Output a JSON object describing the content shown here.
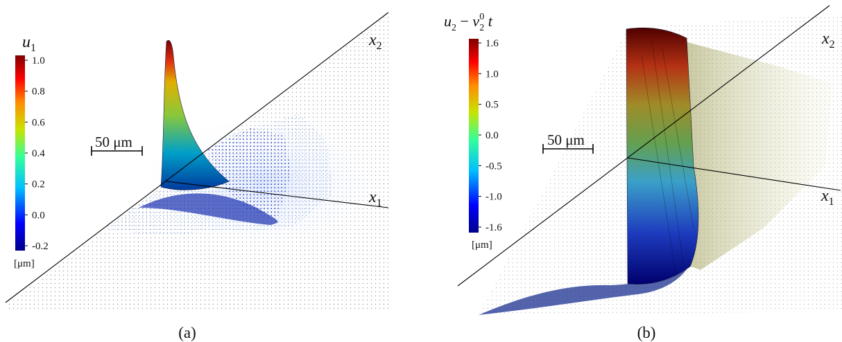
{
  "panels": [
    {
      "caption": "(a)",
      "colorbar": {
        "title": "u",
        "title_sub": "1",
        "ticks": [
          "1.0",
          "0.8",
          "0.6",
          "0.4",
          "0.2",
          "0.0",
          "-0.2"
        ],
        "unit": "[μm]"
      },
      "scale_bar": "50 μm",
      "axes": {
        "x1": "x",
        "x1_sub": "1",
        "x2": "x",
        "x2_sub": "2"
      }
    },
    {
      "caption": "(b)",
      "colorbar": {
        "title_u": "u",
        "title_u_sub": "2",
        "title_minus": " − ",
        "title_v": "v",
        "title_v_sub": "2",
        "title_v_sup": "0",
        "title_t": " t",
        "ticks": [
          "1.6",
          "1.0",
          "0.5",
          "0.0",
          "-0.5",
          "-1.0",
          "-1.6"
        ],
        "unit": "[μm]"
      },
      "scale_bar": "50 μm",
      "axes": {
        "x1": "x",
        "x1_sub": "1",
        "x2": "x",
        "x2_sub": "2"
      }
    }
  ],
  "colormap": {
    "name": "jet",
    "stops": [
      "#00008b",
      "#0000ff",
      "#00bfff",
      "#33ff99",
      "#c8e400",
      "#ff8c00",
      "#ff0000",
      "#800000"
    ]
  }
}
